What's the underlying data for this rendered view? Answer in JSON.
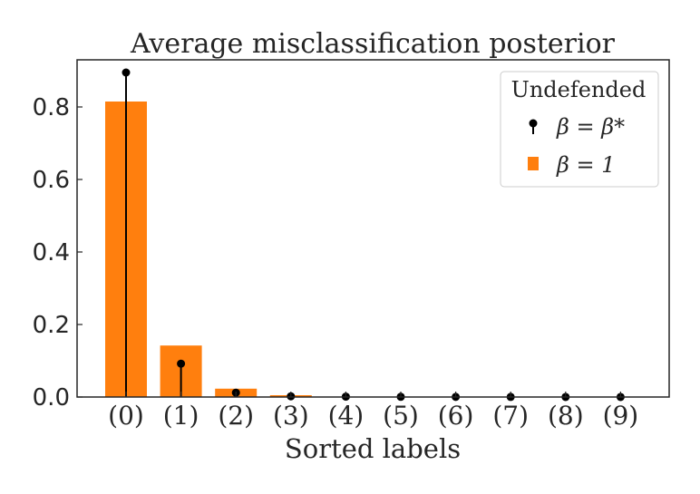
{
  "chart_data": {
    "type": "bar",
    "title": "Average misclassification posterior",
    "xlabel": "Sorted labels",
    "ylabel": "",
    "categories": [
      "(0)",
      "(1)",
      "(2)",
      "(3)",
      "(4)",
      "(5)",
      "(6)",
      "(7)",
      "(8)",
      "(9)"
    ],
    "ylim": [
      0,
      0.93
    ],
    "yticks": [
      0.0,
      0.2,
      0.4,
      0.6,
      0.8
    ],
    "ytick_labels": [
      "0.0",
      "0.2",
      "0.4",
      "0.6",
      "0.8"
    ],
    "grid": false,
    "legend": {
      "title": "Undefended",
      "placement": "top-right",
      "entries": [
        {
          "label": "β = β*",
          "marker": "stem"
        },
        {
          "label": "β = 1",
          "marker": "square"
        }
      ]
    },
    "series": [
      {
        "name": "β = 1",
        "kind": "bar",
        "color": "#ff7f0e",
        "values": [
          0.815,
          0.142,
          0.023,
          0.005,
          0.001,
          0.0005,
          0.0003,
          0.0002,
          0.0001,
          0.0001
        ]
      },
      {
        "name": "β = β*",
        "kind": "stem",
        "color": "#000000",
        "values": [
          0.895,
          0.092,
          0.012,
          0.002,
          0.001,
          0.0005,
          0.0003,
          0.0002,
          0.0001,
          0.0001
        ]
      }
    ]
  }
}
